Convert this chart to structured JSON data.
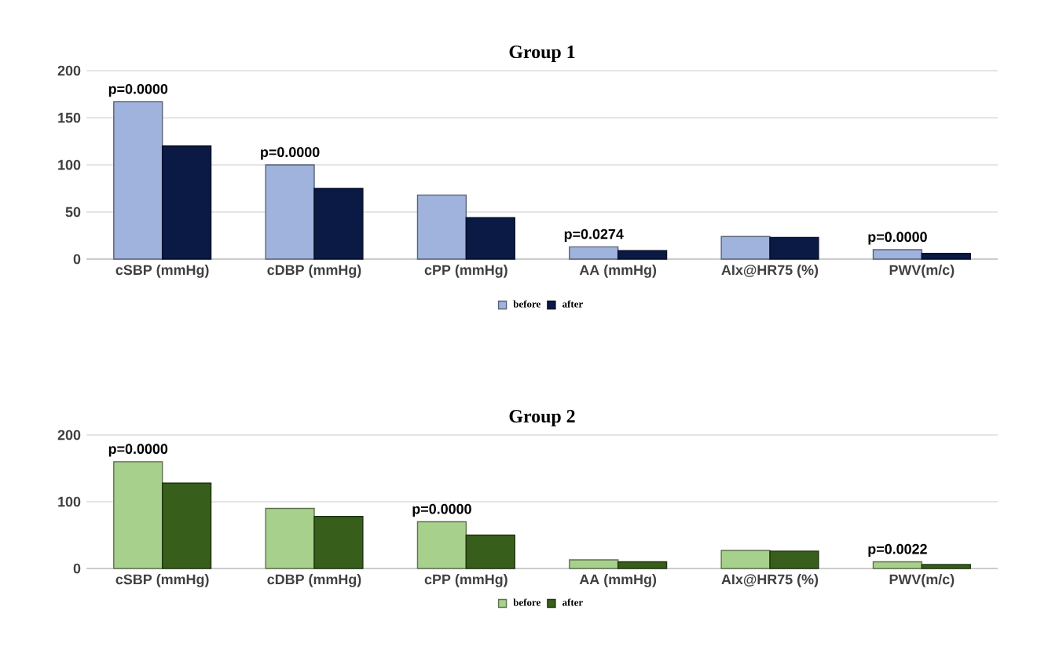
{
  "chart_data": [
    {
      "type": "bar",
      "title": "Group 1",
      "categories": [
        "cSBP (mmHg)",
        "cDBP (mmHg)",
        "cPP (mmHg)",
        "AA (mmHg)",
        "AIx@HR75 (%)",
        "PWV(m/c)"
      ],
      "series": [
        {
          "name": "before",
          "color": "#9fb3dc",
          "values": [
            167,
            100,
            68,
            13,
            24,
            10
          ]
        },
        {
          "name": "after",
          "color": "#0a1a45",
          "values": [
            120,
            75,
            44,
            9,
            23,
            6
          ]
        }
      ],
      "ylim": [
        0,
        200
      ],
      "yticks": [
        0,
        50,
        100,
        150,
        200
      ],
      "grid": "y",
      "legend": "bottom",
      "annotations": [
        {
          "text": "p=0.0000",
          "x": "cSBP (mmHg)",
          "y": 167
        },
        {
          "text": "p=0.0000",
          "x": "cDBP (mmHg)",
          "y": 100
        },
        {
          "text": "p=0.0274",
          "x": "AA (mmHg)",
          "y": 13
        },
        {
          "text": "p=0.0000",
          "x": "PWV(m/c)",
          "y": 10
        }
      ]
    },
    {
      "type": "bar",
      "title": "Group 2",
      "categories": [
        "cSBP (mmHg)",
        "cDBP (mmHg)",
        "cPP (mmHg)",
        "AA (mmHg)",
        "AIx@HR75 (%)",
        "PWV(m/c)"
      ],
      "series": [
        {
          "name": "before",
          "color": "#a8d08d",
          "values": [
            160,
            90,
            70,
            13,
            27,
            10
          ]
        },
        {
          "name": "after",
          "color": "#375f1b",
          "values": [
            128,
            78,
            50,
            10,
            26,
            6
          ]
        }
      ],
      "ylim": [
        0,
        200
      ],
      "yticks": [
        0,
        100,
        200
      ],
      "grid": "y",
      "legend": "bottom",
      "annotations": [
        {
          "text": "p=0.0000",
          "x": "cSBP (mmHg)",
          "y": 160
        },
        {
          "text": "p=0.0000",
          "x": "cPP (mmHg)",
          "y": 70
        },
        {
          "text": "p=0.0022",
          "x": "PWV(m/c)",
          "y": 10
        }
      ]
    }
  ]
}
